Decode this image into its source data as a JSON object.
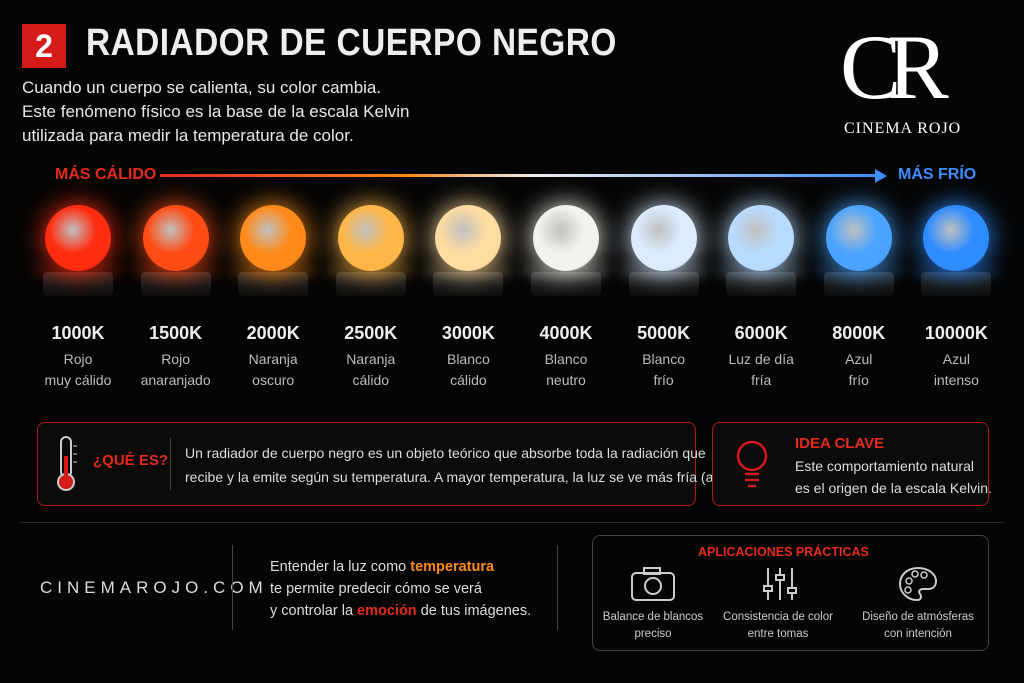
{
  "header": {
    "number": "2",
    "title": "RADIADOR DE CUERPO NEGRO",
    "intro": [
      "Cuando un cuerpo se calienta, su color cambia.",
      "Este fenómeno físico es la base de la escala Kelvin",
      "utilizada para medir la temperatura de color."
    ]
  },
  "logo": {
    "monogram": "CR",
    "name": "CINEMA ROJO"
  },
  "scale": {
    "warm_label": "MÁS CÁLIDO",
    "cool_label": "MÁS FRÍO",
    "bulbs": [
      {
        "kelvin": "1000K",
        "description": [
          "Rojo",
          "muy cálido"
        ],
        "color": "#ff2d10"
      },
      {
        "kelvin": "1500K",
        "description": [
          "Rojo",
          "anaranjado"
        ],
        "color": "#ff4c14"
      },
      {
        "kelvin": "2000K",
        "description": [
          "Naranja",
          "oscuro"
        ],
        "color": "#ff8a1a"
      },
      {
        "kelvin": "2500K",
        "description": [
          "Naranja",
          "cálido"
        ],
        "color": "#ffb648"
      },
      {
        "kelvin": "3000K",
        "description": [
          "Blanco",
          "cálido"
        ],
        "color": "#ffdca0"
      },
      {
        "kelvin": "4000K",
        "description": [
          "Blanco",
          "neutro"
        ],
        "color": "#f4f2ec"
      },
      {
        "kelvin": "5000K",
        "description": [
          "Blanco",
          "frío"
        ],
        "color": "#dcecff"
      },
      {
        "kelvin": "6000K",
        "description": [
          "Luz de día",
          "fría"
        ],
        "color": "#b8dcff"
      },
      {
        "kelvin": "8000K",
        "description": [
          "Azul",
          "frío"
        ],
        "color": "#4aa4ff"
      },
      {
        "kelvin": "10000K",
        "description": [
          "Azul",
          "intenso"
        ],
        "color": "#2f8cff"
      }
    ]
  },
  "what_is": {
    "heading": "¿QUÉ ES?",
    "text": [
      "Un radiador de cuerpo negro es un objeto teórico que absorbe toda la radiación que",
      "recibe y la emite según su temperatura. A mayor temperatura, la luz se ve más fría (azul)."
    ]
  },
  "key_idea": {
    "heading": "IDEA CLAVE",
    "text": [
      "Este comportamiento natural",
      "es el origen de la escala Kelvin."
    ]
  },
  "footer": {
    "website": "CINEMAROJO.COM",
    "message": [
      [
        "Entender la luz como ",
        "temperatura"
      ],
      [
        "te permite predecir cómo se verá"
      ],
      [
        "y controlar la ",
        "emoción",
        " de tus imágenes."
      ]
    ],
    "applications": {
      "title": "APLICACIONES PRÁCTICAS",
      "items": [
        [
          "Balance de blancos",
          "preciso"
        ],
        [
          "Consistencia de color",
          "entre tomas"
        ],
        [
          "Diseño de atmósferas",
          "con intención"
        ]
      ]
    }
  }
}
